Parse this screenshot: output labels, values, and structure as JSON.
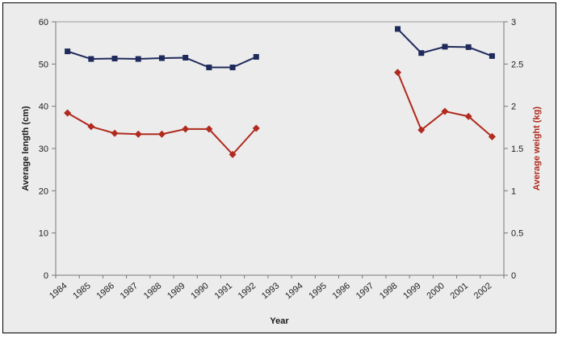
{
  "chart_data": {
    "type": "line",
    "title": "",
    "xlabel": "Year",
    "ylabel_left": "Average length (cm)",
    "ylabel_right": "Average weight (kg)",
    "ylim_left": [
      0,
      60
    ],
    "ylim_right": [
      0,
      3
    ],
    "yticks_left": [
      "0",
      "10",
      "20",
      "30",
      "40",
      "50",
      "60"
    ],
    "yticks_right": [
      "0",
      "0.5",
      "1",
      "1.5",
      "2",
      "2.5",
      "3"
    ],
    "categories": [
      "1984",
      "1985",
      "1986",
      "1987",
      "1988",
      "1989",
      "1990",
      "1991",
      "1992",
      "1993",
      "1994",
      "1995",
      "1996",
      "1997",
      "1998",
      "1999",
      "2000",
      "2001",
      "2002"
    ],
    "x_tick_labels": [
      "1984",
      "1985",
      "1986",
      "1987",
      "1988",
      "1989",
      "1990",
      "1991",
      "1992",
      "1993",
      "1994",
      "1995",
      "1996",
      "1997",
      "1998",
      "1999",
      "2000",
      "2001",
      "2002"
    ],
    "grid": false,
    "legend": "none",
    "series": [
      {
        "axis": "left",
        "color": "#1f2a5c",
        "marker": "square",
        "values": [
          53.0,
          51.2,
          51.3,
          51.2,
          51.4,
          51.5,
          49.2,
          49.2,
          51.7,
          null,
          null,
          null,
          null,
          null,
          58.3,
          52.6,
          54.1,
          54.0,
          51.9
        ]
      },
      {
        "axis": "right",
        "color": "#b02a1e",
        "marker": "diamond",
        "values": [
          1.92,
          1.76,
          1.68,
          1.67,
          1.67,
          1.73,
          1.73,
          1.43,
          1.74,
          null,
          null,
          null,
          null,
          null,
          2.4,
          1.72,
          1.94,
          1.88,
          1.64
        ]
      }
    ]
  }
}
